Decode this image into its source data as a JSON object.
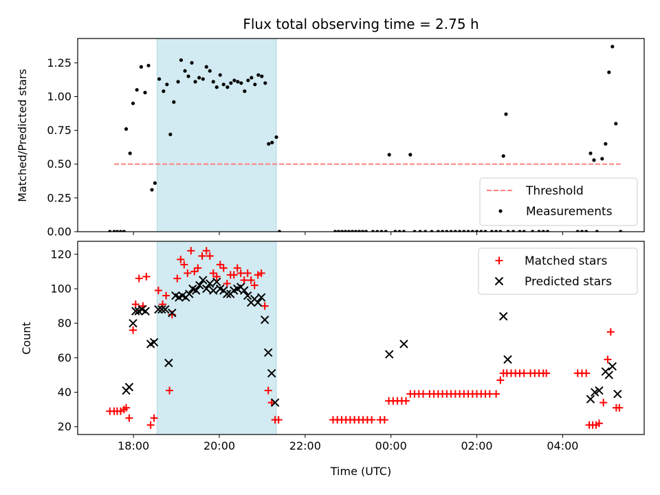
{
  "chart_data": {
    "type": "scatter",
    "title": "Flux total observing time = 2.75 h",
    "xlabel": "Time (UTC)",
    "x_unit_note": "hours UTC; values past 24 are after midnight",
    "xlim": [
      16.7,
      29.9
    ],
    "xticks": [
      18,
      20,
      22,
      24,
      26,
      28
    ],
    "xtick_labels": [
      "18:00",
      "20:00",
      "22:00",
      "00:00",
      "02:00",
      "04:00"
    ],
    "shaded_interval": [
      18.55,
      21.33
    ],
    "shade_color": "#add8e6",
    "top": {
      "ylabel": "Matched/Predicted stars",
      "ylim": [
        0,
        1.43
      ],
      "yticks": [
        0,
        0.25,
        0.5,
        0.75,
        1.0,
        1.25
      ],
      "ytick_labels": [
        "0.00",
        "0.25",
        "0.50",
        "0.75",
        "1.00",
        "1.25"
      ],
      "legend_position": "lower-right",
      "threshold": {
        "name": "Threshold",
        "value": 0.5,
        "x_range": [
          17.55,
          29.35
        ],
        "color": "#ff7f7f"
      },
      "measurements": {
        "name": "Measurements",
        "color": "#000000",
        "points": [
          [
            17.45,
            0
          ],
          [
            17.55,
            0
          ],
          [
            17.62,
            0
          ],
          [
            17.7,
            0
          ],
          [
            17.78,
            0
          ],
          [
            17.83,
            0.76
          ],
          [
            17.92,
            0.58
          ],
          [
            17.99,
            0.95
          ],
          [
            18.08,
            1.05
          ],
          [
            18.18,
            1.22
          ],
          [
            18.27,
            1.03
          ],
          [
            18.35,
            1.23
          ],
          [
            18.43,
            0.31
          ],
          [
            18.5,
            0.36
          ],
          [
            18.6,
            1.13
          ],
          [
            18.7,
            1.04
          ],
          [
            18.78,
            1.09
          ],
          [
            18.86,
            0.72
          ],
          [
            18.94,
            0.96
          ],
          [
            19.04,
            1.11
          ],
          [
            19.11,
            1.27
          ],
          [
            19.2,
            1.19
          ],
          [
            19.28,
            1.15
          ],
          [
            19.36,
            1.25
          ],
          [
            19.44,
            1.11
          ],
          [
            19.53,
            1.14
          ],
          [
            19.62,
            1.13
          ],
          [
            19.7,
            1.22
          ],
          [
            19.78,
            1.19
          ],
          [
            19.86,
            1.11
          ],
          [
            19.94,
            1.07
          ],
          [
            20.02,
            1.16
          ],
          [
            20.1,
            1.09
          ],
          [
            20.19,
            1.07
          ],
          [
            20.27,
            1.1
          ],
          [
            20.35,
            1.12
          ],
          [
            20.43,
            1.11
          ],
          [
            20.51,
            1.1
          ],
          [
            20.59,
            1.04
          ],
          [
            20.67,
            1.12
          ],
          [
            20.75,
            1.14
          ],
          [
            20.83,
            1.09
          ],
          [
            20.91,
            1.16
          ],
          [
            20.99,
            1.15
          ],
          [
            21.07,
            1.1
          ],
          [
            21.15,
            0.65
          ],
          [
            21.23,
            0.66
          ],
          [
            21.33,
            0.7
          ],
          [
            21.4,
            0
          ],
          [
            22.7,
            0
          ],
          [
            22.78,
            0
          ],
          [
            22.86,
            0
          ],
          [
            22.94,
            0
          ],
          [
            23.02,
            0
          ],
          [
            23.1,
            0
          ],
          [
            23.18,
            0
          ],
          [
            23.26,
            0
          ],
          [
            23.34,
            0
          ],
          [
            23.42,
            0
          ],
          [
            23.58,
            0
          ],
          [
            23.68,
            0
          ],
          [
            23.78,
            0
          ],
          [
            23.88,
            0
          ],
          [
            23.96,
            0.57
          ],
          [
            24.1,
            0
          ],
          [
            24.2,
            0
          ],
          [
            24.3,
            0
          ],
          [
            24.45,
            0.57
          ],
          [
            24.55,
            0
          ],
          [
            24.68,
            0
          ],
          [
            24.8,
            0
          ],
          [
            24.95,
            0
          ],
          [
            25.1,
            0
          ],
          [
            25.2,
            0
          ],
          [
            25.3,
            0
          ],
          [
            25.4,
            0
          ],
          [
            25.5,
            0
          ],
          [
            25.6,
            0
          ],
          [
            25.7,
            0
          ],
          [
            25.8,
            0
          ],
          [
            25.9,
            0
          ],
          [
            26.0,
            0
          ],
          [
            26.1,
            0
          ],
          [
            26.2,
            0
          ],
          [
            26.35,
            0
          ],
          [
            26.45,
            0
          ],
          [
            26.55,
            0
          ],
          [
            26.62,
            0.56
          ],
          [
            26.68,
            0.87
          ],
          [
            26.73,
            0
          ],
          [
            26.85,
            0
          ],
          [
            27.0,
            0
          ],
          [
            27.1,
            0
          ],
          [
            27.3,
            0
          ],
          [
            27.45,
            0
          ],
          [
            27.55,
            0
          ],
          [
            27.65,
            0
          ],
          [
            28.35,
            0
          ],
          [
            28.45,
            0
          ],
          [
            28.55,
            0
          ],
          [
            28.65,
            0.58
          ],
          [
            28.73,
            0.53
          ],
          [
            28.8,
            0
          ],
          [
            28.92,
            0.54
          ],
          [
            29.0,
            0.65
          ],
          [
            29.08,
            1.18
          ],
          [
            29.16,
            1.37
          ],
          [
            29.24,
            0.8
          ],
          [
            29.35,
            0
          ]
        ]
      }
    },
    "bottom": {
      "ylabel": "Count",
      "ylim": [
        15.5,
        127.5
      ],
      "yticks": [
        20,
        40,
        60,
        80,
        100,
        120
      ],
      "ytick_labels": [
        "20",
        "40",
        "60",
        "80",
        "100",
        "120"
      ],
      "legend_position": "upper-right",
      "series": [
        {
          "name": "Matched stars",
          "marker": "plus",
          "color": "#ff0000",
          "points": [
            [
              17.45,
              29
            ],
            [
              17.55,
              29
            ],
            [
              17.62,
              29
            ],
            [
              17.7,
              29
            ],
            [
              17.78,
              30
            ],
            [
              17.83,
              31
            ],
            [
              17.9,
              25
            ],
            [
              17.99,
              76
            ],
            [
              18.05,
              91
            ],
            [
              18.13,
              106
            ],
            [
              18.22,
              90
            ],
            [
              18.3,
              107
            ],
            [
              18.4,
              21
            ],
            [
              18.48,
              25
            ],
            [
              18.58,
              99
            ],
            [
              18.68,
              91
            ],
            [
              18.76,
              96
            ],
            [
              18.84,
              41
            ],
            [
              18.9,
              85
            ],
            [
              19.02,
              106
            ],
            [
              19.1,
              117
            ],
            [
              19.18,
              114
            ],
            [
              19.26,
              109
            ],
            [
              19.34,
              122
            ],
            [
              19.42,
              110
            ],
            [
              19.5,
              112
            ],
            [
              19.6,
              119
            ],
            [
              19.7,
              122
            ],
            [
              19.78,
              119
            ],
            [
              19.86,
              109
            ],
            [
              19.94,
              107
            ],
            [
              20.02,
              114
            ],
            [
              20.1,
              112
            ],
            [
              20.18,
              103
            ],
            [
              20.26,
              108
            ],
            [
              20.34,
              108
            ],
            [
              20.42,
              112
            ],
            [
              20.5,
              109
            ],
            [
              20.58,
              105
            ],
            [
              20.66,
              109
            ],
            [
              20.74,
              105
            ],
            [
              20.82,
              102
            ],
            [
              20.9,
              108
            ],
            [
              20.98,
              109
            ],
            [
              21.06,
              90
            ],
            [
              21.14,
              41
            ],
            [
              21.22,
              34
            ],
            [
              21.3,
              24
            ],
            [
              21.38,
              24
            ],
            [
              22.65,
              24
            ],
            [
              22.75,
              24
            ],
            [
              22.85,
              24
            ],
            [
              22.95,
              24
            ],
            [
              23.05,
              24
            ],
            [
              23.15,
              24
            ],
            [
              23.25,
              24
            ],
            [
              23.35,
              24
            ],
            [
              23.45,
              24
            ],
            [
              23.55,
              24
            ],
            [
              23.75,
              24
            ],
            [
              23.85,
              24
            ],
            [
              23.95,
              35
            ],
            [
              24.05,
              35
            ],
            [
              24.15,
              35
            ],
            [
              24.25,
              35
            ],
            [
              24.35,
              35
            ],
            [
              24.45,
              39
            ],
            [
              24.55,
              39
            ],
            [
              24.65,
              39
            ],
            [
              24.75,
              39
            ],
            [
              24.9,
              39
            ],
            [
              25.0,
              39
            ],
            [
              25.1,
              39
            ],
            [
              25.2,
              39
            ],
            [
              25.3,
              39
            ],
            [
              25.4,
              39
            ],
            [
              25.5,
              39
            ],
            [
              25.6,
              39
            ],
            [
              25.7,
              39
            ],
            [
              25.8,
              39
            ],
            [
              25.9,
              39
            ],
            [
              26.0,
              39
            ],
            [
              26.1,
              39
            ],
            [
              26.2,
              39
            ],
            [
              26.3,
              39
            ],
            [
              26.45,
              39
            ],
            [
              26.55,
              47
            ],
            [
              26.62,
              51
            ],
            [
              26.7,
              51
            ],
            [
              26.8,
              51
            ],
            [
              26.9,
              51
            ],
            [
              27.0,
              51
            ],
            [
              27.1,
              51
            ],
            [
              27.25,
              51
            ],
            [
              27.35,
              51
            ],
            [
              27.45,
              51
            ],
            [
              27.55,
              51
            ],
            [
              27.62,
              51
            ],
            [
              28.35,
              51
            ],
            [
              28.45,
              51
            ],
            [
              28.55,
              51
            ],
            [
              28.62,
              21
            ],
            [
              28.7,
              21
            ],
            [
              28.78,
              21
            ],
            [
              28.85,
              22
            ],
            [
              28.95,
              34
            ],
            [
              29.05,
              59
            ],
            [
              29.12,
              75
            ],
            [
              29.25,
              31
            ],
            [
              29.32,
              31
            ]
          ]
        },
        {
          "name": "Predicted stars",
          "marker": "x",
          "color": "#000000",
          "points": [
            [
              17.83,
              41
            ],
            [
              17.9,
              43
            ],
            [
              17.99,
              80
            ],
            [
              18.05,
              87
            ],
            [
              18.12,
              87
            ],
            [
              18.2,
              88
            ],
            [
              18.28,
              87
            ],
            [
              18.4,
              68
            ],
            [
              18.48,
              69
            ],
            [
              18.58,
              88
            ],
            [
              18.66,
              88
            ],
            [
              18.74,
              88
            ],
            [
              18.82,
              57
            ],
            [
              18.9,
              86
            ],
            [
              18.98,
              96
            ],
            [
              19.06,
              95
            ],
            [
              19.14,
              96
            ],
            [
              19.22,
              95
            ],
            [
              19.3,
              97
            ],
            [
              19.38,
              100
            ],
            [
              19.46,
              99
            ],
            [
              19.54,
              102
            ],
            [
              19.62,
              105
            ],
            [
              19.7,
              100
            ],
            [
              19.78,
              103
            ],
            [
              19.86,
              99
            ],
            [
              19.94,
              104
            ],
            [
              20.02,
              100
            ],
            [
              20.1,
              99
            ],
            [
              20.18,
              97
            ],
            [
              20.26,
              97
            ],
            [
              20.34,
              99
            ],
            [
              20.42,
              100
            ],
            [
              20.5,
              101
            ],
            [
              20.58,
              99
            ],
            [
              20.66,
              96
            ],
            [
              20.74,
              92
            ],
            [
              20.82,
              94
            ],
            [
              20.9,
              92
            ],
            [
              20.98,
              95
            ],
            [
              21.06,
              82
            ],
            [
              21.14,
              63
            ],
            [
              21.22,
              51
            ],
            [
              21.3,
              34
            ],
            [
              23.96,
              62
            ],
            [
              24.3,
              68
            ],
            [
              26.62,
              84
            ],
            [
              26.72,
              59
            ],
            [
              28.65,
              36
            ],
            [
              28.75,
              40
            ],
            [
              28.85,
              41
            ],
            [
              29.0,
              52
            ],
            [
              29.08,
              50
            ],
            [
              29.16,
              55
            ],
            [
              29.28,
              39
            ]
          ]
        }
      ]
    }
  }
}
